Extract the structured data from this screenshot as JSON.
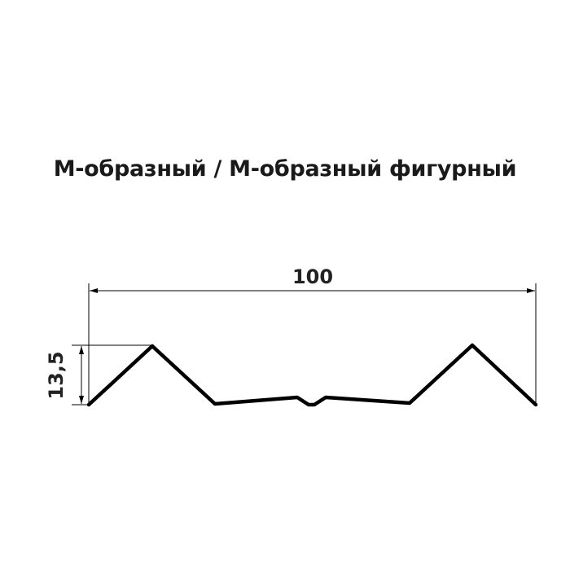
{
  "title": "М-образный / М-образный фигурный",
  "dimensions": {
    "width_label": "100",
    "height_label": "13,5"
  },
  "colors": {
    "profile": "#000000",
    "text": "#222222"
  }
}
